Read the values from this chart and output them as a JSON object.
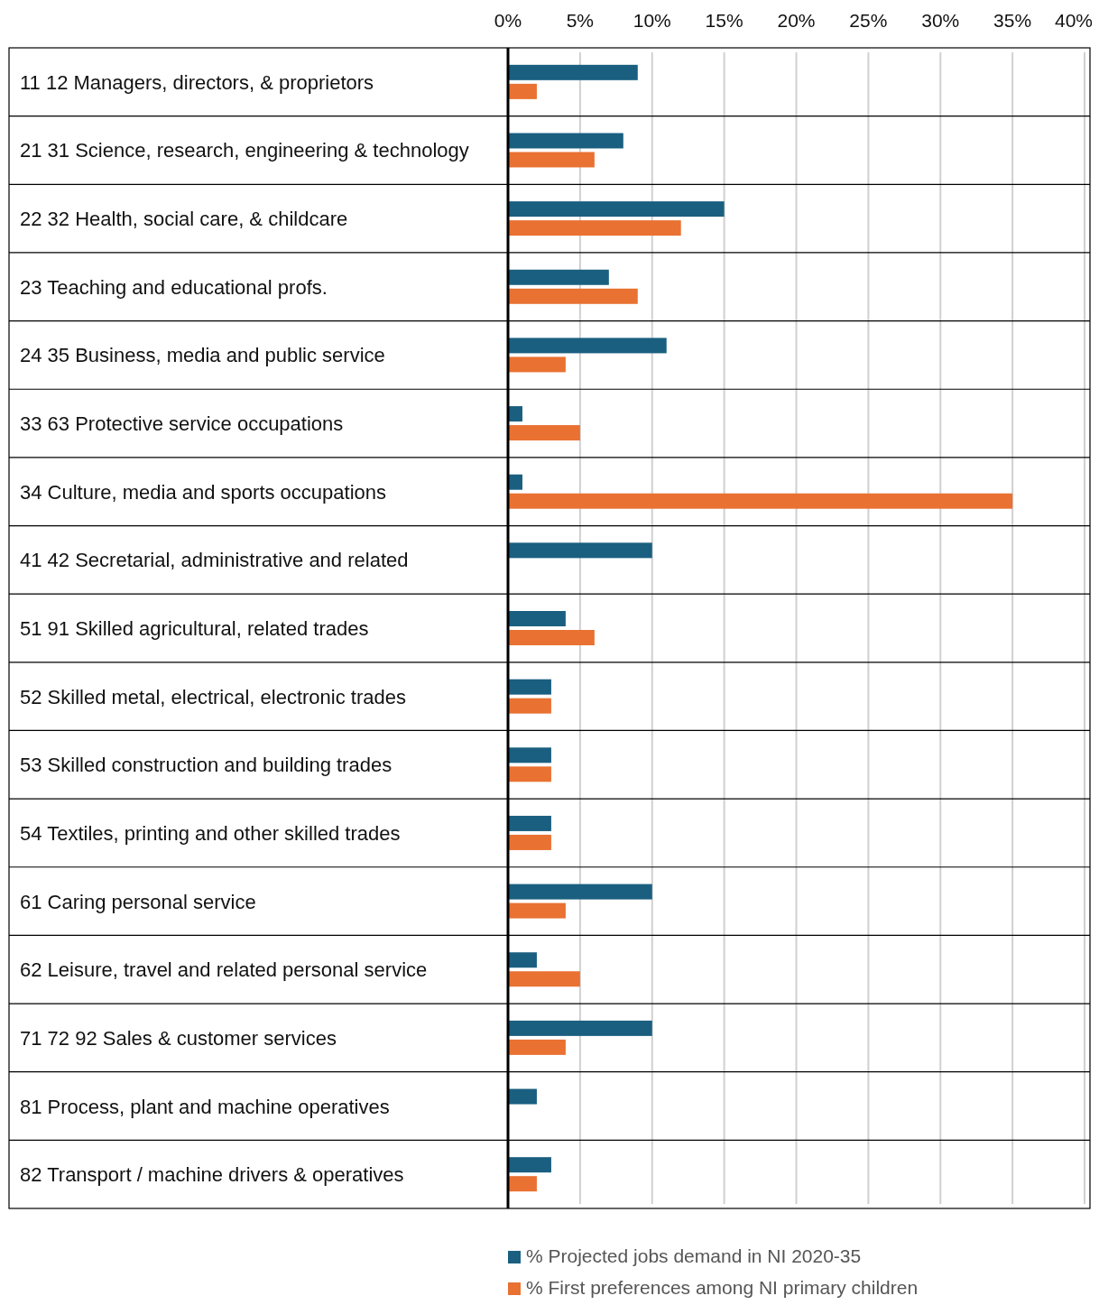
{
  "chart_data": {
    "type": "bar",
    "orientation": "horizontal",
    "categories": [
      "11 12 Managers, directors, & proprietors",
      "21 31 Science, research, engineering & technology",
      "22 32 Health, social care, & childcare",
      "23 Teaching and educational profs.",
      "24 35 Business, media and public service",
      "33 63 Protective service occupations",
      "34 Culture, media and sports occupations",
      "41 42 Secretarial, administrative and related",
      "51 91 Skilled agricultural, related trades",
      "52 Skilled metal, electrical, electronic trades",
      "53 Skilled construction and building trades",
      "54 Textiles, printing and other skilled trades",
      "61 Caring personal service",
      "62 Leisure, travel and related personal service",
      "71 72 92 Sales & customer services",
      "81 Process, plant and machine operatives",
      "82 Transport / machine drivers & operatives"
    ],
    "series": [
      {
        "name": "% Projected jobs demand in NI 2020-35",
        "color": "#1a5f80",
        "values": [
          9,
          8,
          15,
          7,
          11,
          1,
          1,
          10,
          4,
          3,
          3,
          3,
          10,
          2,
          10,
          2,
          3
        ]
      },
      {
        "name": "% First preferences among NI primary children",
        "color": "#e97132",
        "values": [
          2,
          6,
          12,
          9,
          4,
          5,
          35,
          0,
          6,
          3,
          3,
          3,
          4,
          5,
          4,
          0,
          2
        ]
      }
    ],
    "xlim": [
      0,
      40
    ],
    "xticks": [
      {
        "value": 0,
        "label": "0%"
      },
      {
        "value": 5,
        "label": "5%"
      },
      {
        "value": 10,
        "label": "10%"
      },
      {
        "value": 15,
        "label": "15%"
      },
      {
        "value": 20,
        "label": "20%"
      },
      {
        "value": 25,
        "label": "25%"
      },
      {
        "value": 30,
        "label": "30%"
      },
      {
        "value": 35,
        "label": "35%"
      },
      {
        "value": 40,
        "label": "40%"
      }
    ],
    "grid": "x",
    "legend": "bottom"
  }
}
